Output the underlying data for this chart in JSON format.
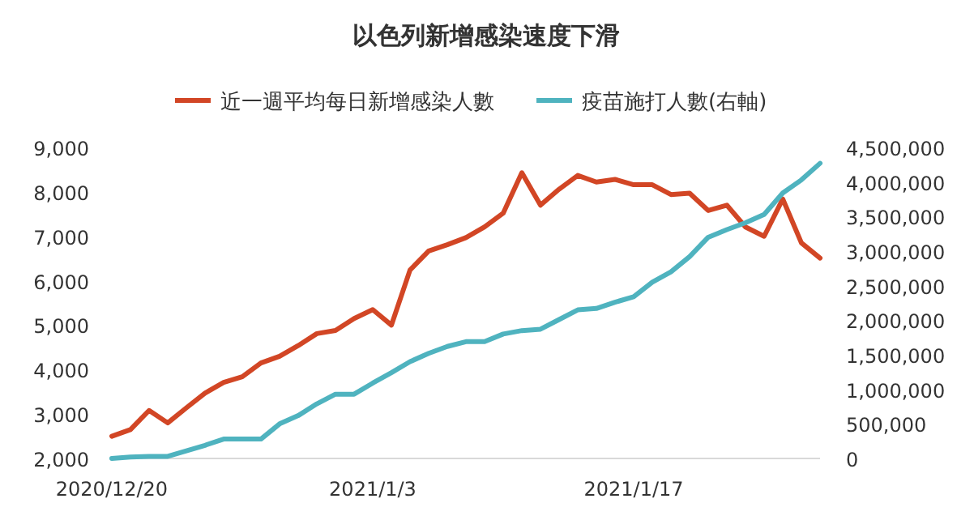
{
  "chart_data": {
    "type": "line",
    "title": "以色列新增感染速度下滑",
    "x": [
      "2020-12-20",
      "2020-12-21",
      "2020-12-22",
      "2020-12-23",
      "2020-12-24",
      "2020-12-25",
      "2020-12-26",
      "2020-12-27",
      "2020-12-28",
      "2020-12-29",
      "2020-12-30",
      "2020-12-31",
      "2021-01-01",
      "2021-01-02",
      "2021-01-03",
      "2021-01-04",
      "2021-01-05",
      "2021-01-06",
      "2021-01-07",
      "2021-01-08",
      "2021-01-09",
      "2021-01-10",
      "2021-01-11",
      "2021-01-12",
      "2021-01-13",
      "2021-01-14",
      "2021-01-15",
      "2021-01-16",
      "2021-01-17",
      "2021-01-18",
      "2021-01-19",
      "2021-01-20",
      "2021-01-21",
      "2021-01-22",
      "2021-01-23",
      "2021-01-24",
      "2021-01-25",
      "2021-01-26",
      "2021-01-27"
    ],
    "series": [
      {
        "name": "近一週平均每日新增感染人數",
        "color": "#d24625",
        "values": [
          2500,
          2650,
          3080,
          2800,
          3140,
          3470,
          3710,
          3840,
          4150,
          4300,
          4540,
          4810,
          4880,
          5150,
          5350,
          5000,
          6240,
          6670,
          6810,
          6970,
          7210,
          7520,
          8430,
          7700,
          8060,
          8370,
          8220,
          8280,
          8160,
          8160,
          7940,
          7970,
          7580,
          7700,
          7210,
          7000,
          7840,
          6850,
          6510
        ]
      },
      {
        "name": "疫苗施打人數(右軸)",
        "color": "#4fb3bf",
        "axis": "y2",
        "values": [
          0,
          20000,
          30000,
          30000,
          110000,
          190000,
          280000,
          280000,
          280000,
          500000,
          620000,
          790000,
          930000,
          930000,
          1090000,
          1240000,
          1400000,
          1520000,
          1620000,
          1690000,
          1690000,
          1800000,
          1850000,
          1870000,
          2010000,
          2150000,
          2170000,
          2260000,
          2340000,
          2550000,
          2700000,
          2920000,
          3200000,
          3310000,
          3410000,
          3530000,
          3840000,
          4030000,
          4270000
        ]
      }
    ],
    "xlim": [
      "2020-12-20",
      "2021-01-27"
    ],
    "xticks": [
      {
        "value": "2020-12-20",
        "label": "2020/12/20"
      },
      {
        "value": "2021-01-03",
        "label": "2021/1/3"
      },
      {
        "value": "2021-01-17",
        "label": "2021/1/17"
      }
    ],
    "ylim": [
      2000,
      9000
    ],
    "yticks": [
      {
        "value": 2000,
        "label": "2,000"
      },
      {
        "value": 3000,
        "label": "3,000"
      },
      {
        "value": 4000,
        "label": "4,000"
      },
      {
        "value": 5000,
        "label": "5,000"
      },
      {
        "value": 6000,
        "label": "6,000"
      },
      {
        "value": 7000,
        "label": "7,000"
      },
      {
        "value": 8000,
        "label": "8,000"
      },
      {
        "value": 9000,
        "label": "9,000"
      }
    ],
    "y2lim": [
      0,
      4500000
    ],
    "y2ticks": [
      0,
      {
        "value": 500000,
        "label": "500,000"
      },
      {
        "value": 1000000,
        "label": "1,000,000"
      },
      {
        "value": 1500000,
        "label": "1,500,000"
      },
      {
        "value": 2000000,
        "label": "2,000,000"
      },
      {
        "value": 2500000,
        "label": "2,500,000"
      },
      {
        "value": 3000000,
        "label": "3,000,000"
      },
      {
        "value": 3500000,
        "label": "3,500,000"
      },
      {
        "value": 4000000,
        "label": "4,000,000"
      },
      {
        "value": 4500000,
        "label": "4,500,000"
      }
    ],
    "legend": "top",
    "grid": false
  }
}
